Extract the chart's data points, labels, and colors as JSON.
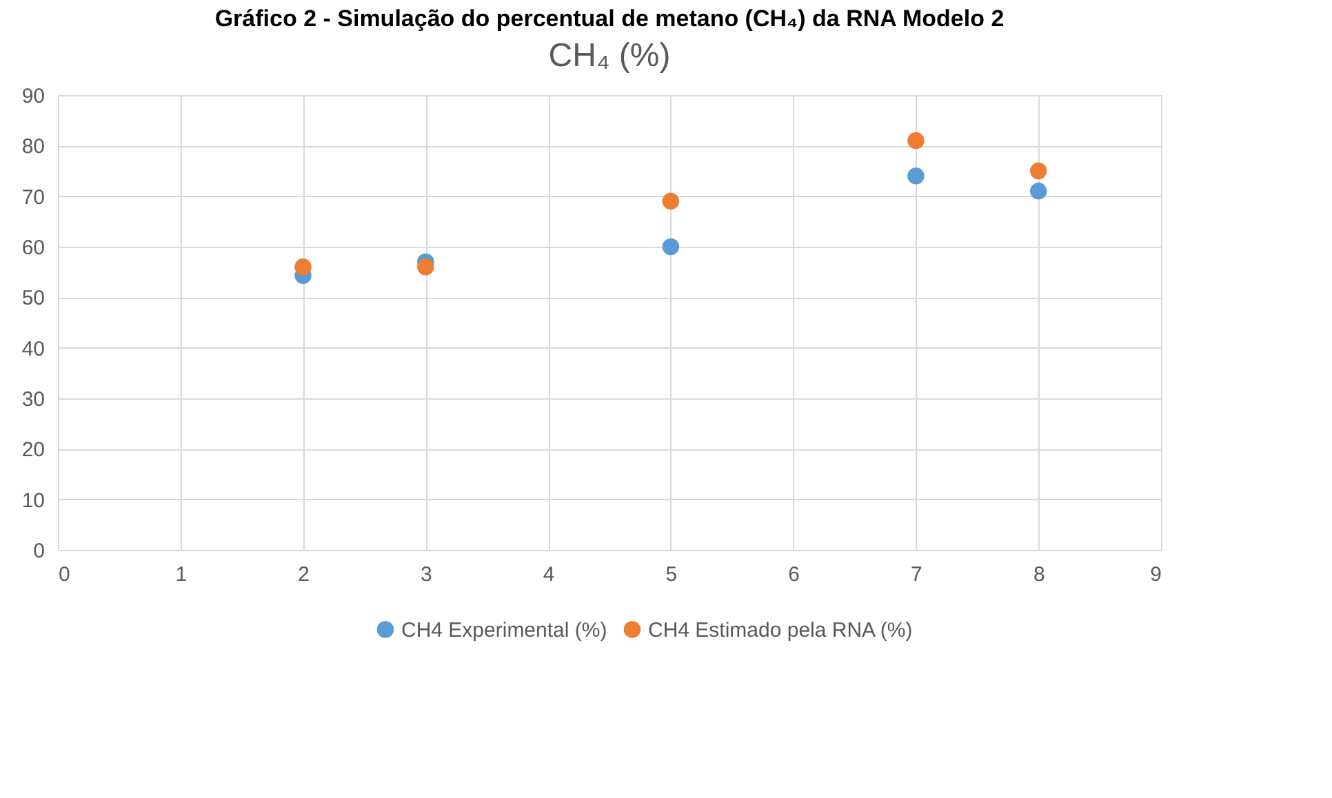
{
  "chart_data": {
    "type": "scatter",
    "title": "Gráfico 2 - Simulação do percentual de metano (CH₄) da RNA Modelo 2",
    "subtitle": "CH₄ (%)",
    "series": [
      {
        "name": "CH4 Experimental (%)",
        "color": "#5b9bd5",
        "x": [
          2,
          3,
          5,
          7,
          8
        ],
        "values": [
          54.3,
          57,
          60,
          74,
          71
        ]
      },
      {
        "name": "CH4 Estimado pela RNA (%)",
        "color": "#ed7d31",
        "x": [
          2,
          3,
          5,
          7,
          8
        ],
        "values": [
          56,
          56,
          69,
          81,
          75
        ]
      }
    ],
    "xlim": [
      0,
      9
    ],
    "xticks": [
      0,
      1,
      2,
      3,
      4,
      5,
      6,
      7,
      8,
      9
    ],
    "ylim": [
      0,
      90
    ],
    "yticks": [
      0,
      10,
      20,
      30,
      40,
      50,
      60,
      70,
      80,
      90
    ],
    "grid": true,
    "legend": "bottom",
    "marker": "circle"
  }
}
